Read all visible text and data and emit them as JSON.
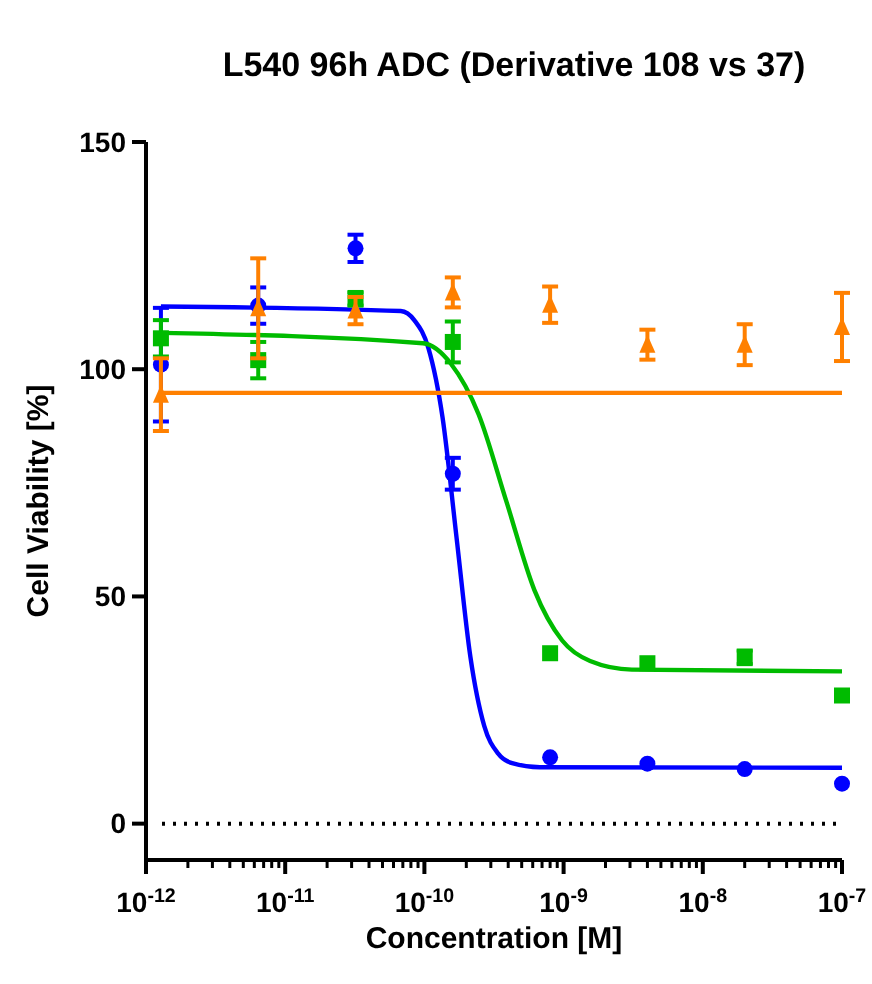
{
  "chart_data": {
    "type": "scatter",
    "title": "L540 96h ADC (Derivative 108 vs 37)",
    "xlabel": "Concentration [M]",
    "ylabel": "Cell Viability [%]",
    "log": "x",
    "grid": false,
    "xlim": [
      1e-12,
      1e-07
    ],
    "ylim": [
      -8,
      150
    ],
    "yticks": [
      0,
      50,
      100,
      150
    ],
    "xticks": [
      {
        "value": 1e-12,
        "label": "10$^{-12}$"
      },
      {
        "value": 2e-12,
        "label": null
      },
      {
        "value": 3e-12,
        "label": null
      },
      {
        "value": 4e-12,
        "label": null
      },
      {
        "value": 5e-12,
        "label": null
      },
      {
        "value": 6e-12,
        "label": null
      },
      {
        "value": 7e-12,
        "label": null
      },
      {
        "value": 8e-12,
        "label": null
      },
      {
        "value": 9e-12,
        "label": null
      },
      {
        "value": 1e-11,
        "label": "10$^{-11}$"
      },
      {
        "value": 2e-11,
        "label": null
      },
      {
        "value": 3e-11,
        "label": null
      },
      {
        "value": 4e-11,
        "label": null
      },
      {
        "value": 5e-11,
        "label": null
      },
      {
        "value": 6e-11,
        "label": null
      },
      {
        "value": 7e-11,
        "label": null
      },
      {
        "value": 8e-11,
        "label": null
      },
      {
        "value": 9e-11,
        "label": null
      },
      {
        "value": 1e-10,
        "label": "10$^{-10}$"
      },
      {
        "value": 2e-10,
        "label": null
      },
      {
        "value": 3e-10,
        "label": null
      },
      {
        "value": 4e-10,
        "label": null
      },
      {
        "value": 5e-10,
        "label": null
      },
      {
        "value": 6e-10,
        "label": null
      },
      {
        "value": 7e-10,
        "label": null
      },
      {
        "value": 8e-10,
        "label": null
      },
      {
        "value": 9e-10,
        "label": null
      },
      {
        "value": 1e-09,
        "label": "10$^{-9}$"
      },
      {
        "value": 2e-09,
        "label": null
      },
      {
        "value": 3e-09,
        "label": null
      },
      {
        "value": 4e-09,
        "label": null
      },
      {
        "value": 5e-09,
        "label": null
      },
      {
        "value": 6e-09,
        "label": null
      },
      {
        "value": 7e-09,
        "label": null
      },
      {
        "value": 8e-09,
        "label": null
      },
      {
        "value": 9e-09,
        "label": null
      },
      {
        "value": 1e-08,
        "label": "10$^{-8}$"
      },
      {
        "value": 2e-08,
        "label": null
      },
      {
        "value": 3e-08,
        "label": null
      },
      {
        "value": 4e-08,
        "label": null
      },
      {
        "value": 5e-08,
        "label": null
      },
      {
        "value": 6e-08,
        "label": null
      },
      {
        "value": 7e-08,
        "label": null
      },
      {
        "value": 8e-08,
        "label": null
      },
      {
        "value": 9e-08,
        "label": null
      },
      {
        "value": 1e-07,
        "label": "10$^{-7}$"
      }
    ],
    "ref_lines": [
      {
        "axis": "y",
        "value": 0,
        "line_style": "dotted",
        "color": "#000000"
      }
    ],
    "x": [
      1.28e-12,
      6.4e-12,
      3.2e-11,
      1.6e-10,
      8e-10,
      4e-09,
      2e-08,
      1e-07
    ],
    "series": [
      {
        "type": "scatter",
        "marker": "circle",
        "color": "#0000ff",
        "values": [
          101,
          114,
          126.6,
          77,
          14.6,
          13.2,
          12,
          8.8
        ],
        "errors": [
          12.5,
          4,
          3,
          3.5,
          null,
          null,
          null,
          null
        ]
      },
      {
        "type": "scatter",
        "marker": "square",
        "color": "#00bb00",
        "values": [
          106.8,
          102,
          115.5,
          106,
          37.5,
          35.3,
          36.6,
          28.2
        ],
        "errors": [
          4,
          4,
          1.5,
          4.5,
          null,
          null,
          1.5,
          null
        ]
      },
      {
        "type": "scatter",
        "marker": "triangle",
        "color": "#ff8000",
        "values": [
          94.4,
          113.4,
          112.9,
          116.9,
          114.2,
          105.4,
          105.4,
          109.3
        ],
        "errors": [
          8,
          11,
          3,
          3.3,
          4,
          3.3,
          4.5,
          7.5
        ]
      },
      {
        "type": "line",
        "color": "#0000ff",
        "x": [
          1.28e-12,
          6.76e-11,
          8.51e-11,
          1.07e-10,
          1.35e-10,
          1.7e-10,
          2.14e-10,
          2.69e-10,
          3.39e-10,
          4.27e-10,
          6.76e-10,
          1e-07
        ],
        "values": [
          113.8,
          112.8,
          110.7,
          104.6,
          89.4,
          63.1,
          36.7,
          21.5,
          15.4,
          13.3,
          12.4,
          12.3
        ]
      },
      {
        "type": "line",
        "color": "#00bb00",
        "x": [
          1.28e-12,
          9.77e-11,
          1.55e-10,
          2.45e-10,
          3.89e-10,
          6.17e-10,
          9.77e-10,
          1.55e-09,
          3.09e-09,
          1e-07
        ],
        "values": [
          108,
          105.7,
          101.2,
          90.1,
          70.8,
          51.4,
          40.3,
          35.8,
          33.9,
          33.5
        ]
      },
      {
        "type": "line",
        "color": "#ff8000",
        "x": [
          1.28e-12,
          1e-07
        ],
        "values": [
          94.8,
          94.8
        ]
      }
    ]
  }
}
